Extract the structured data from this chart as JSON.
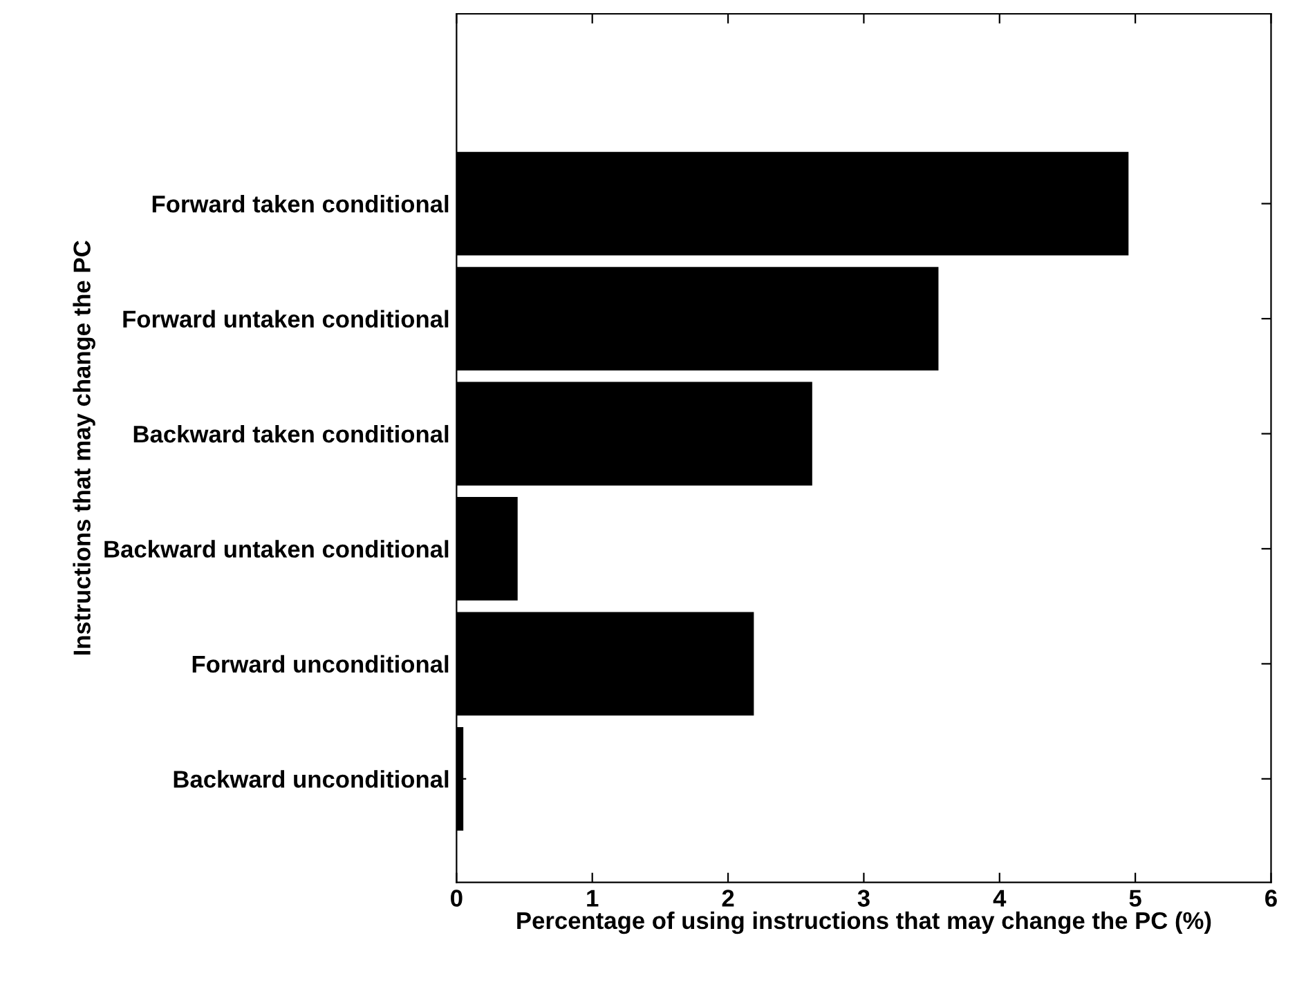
{
  "chart_data": {
    "type": "bar",
    "orientation": "horizontal",
    "categories": [
      "Forward taken conditional",
      "Forward untaken conditional",
      "Backward taken conditional",
      "Backward untaken conditional",
      "Forward unconditional",
      "Backward unconditional"
    ],
    "values": [
      4.95,
      3.55,
      2.62,
      0.45,
      2.19,
      0.05
    ],
    "color": "#000000",
    "xlabel": "Percentage of using instructions that may change the PC (%)",
    "ylabel": "Instructions that may change the PC",
    "xlim": [
      0,
      6
    ],
    "xticks": [
      0,
      1,
      2,
      3,
      4,
      5,
      6
    ],
    "grid": false
  }
}
